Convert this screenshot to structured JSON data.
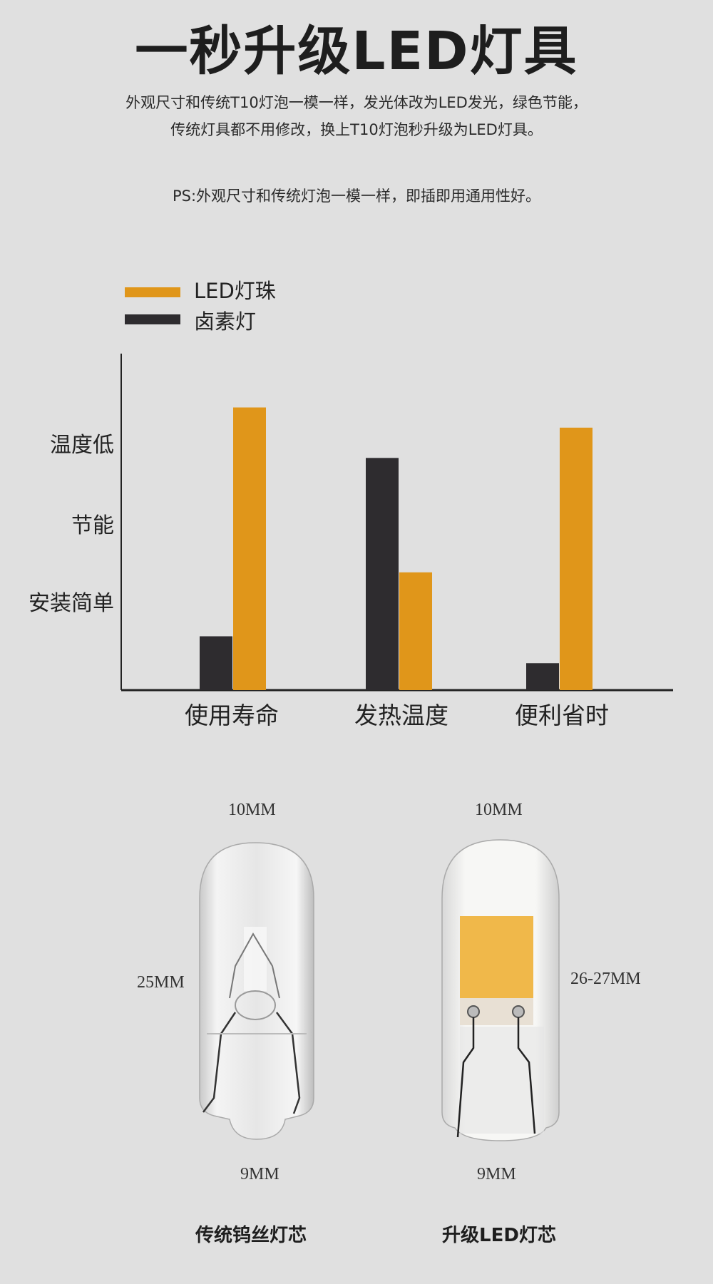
{
  "header": {
    "title": "一秒升级LED灯具",
    "desc_line1": "外观尺寸和传统T10灯泡一模一样，发光体改为LED发光，绿色节能，",
    "desc_line2": "传统灯具都不用修改，换上T10灯泡秒升级为LED灯具。",
    "ps": "PS:外观尺寸和传统灯泡一模一样，即插即用通用性好。"
  },
  "chart_data": {
    "type": "bar",
    "categories": [
      "使用寿命",
      "发热温度",
      "便利省时"
    ],
    "series": [
      {
        "name": "卤素灯",
        "color": "#2e2c2f",
        "values": [
          16,
          69,
          8
        ]
      },
      {
        "name": "LED灯珠",
        "color": "#e0961a",
        "values": [
          84,
          35,
          78
        ]
      }
    ],
    "legend_order": [
      "LED灯珠",
      "卤素灯"
    ],
    "legend_position": "top-left",
    "y_tick_labels": [
      {
        "label": "温度低",
        "value": 74
      },
      {
        "label": "节能",
        "value": 50
      },
      {
        "label": "安装简单",
        "value": 27
      }
    ],
    "ylim": [
      0,
      100
    ],
    "grid": false
  },
  "bulbs": {
    "left": {
      "top_dim": "10MM",
      "side_dim": "25MM",
      "bottom_dim": "9MM",
      "caption": "传统钨丝灯芯"
    },
    "right": {
      "top_dim": "10MM",
      "side_dim": "26-27MM",
      "bottom_dim": "9MM",
      "caption": "升级LED灯芯"
    }
  }
}
